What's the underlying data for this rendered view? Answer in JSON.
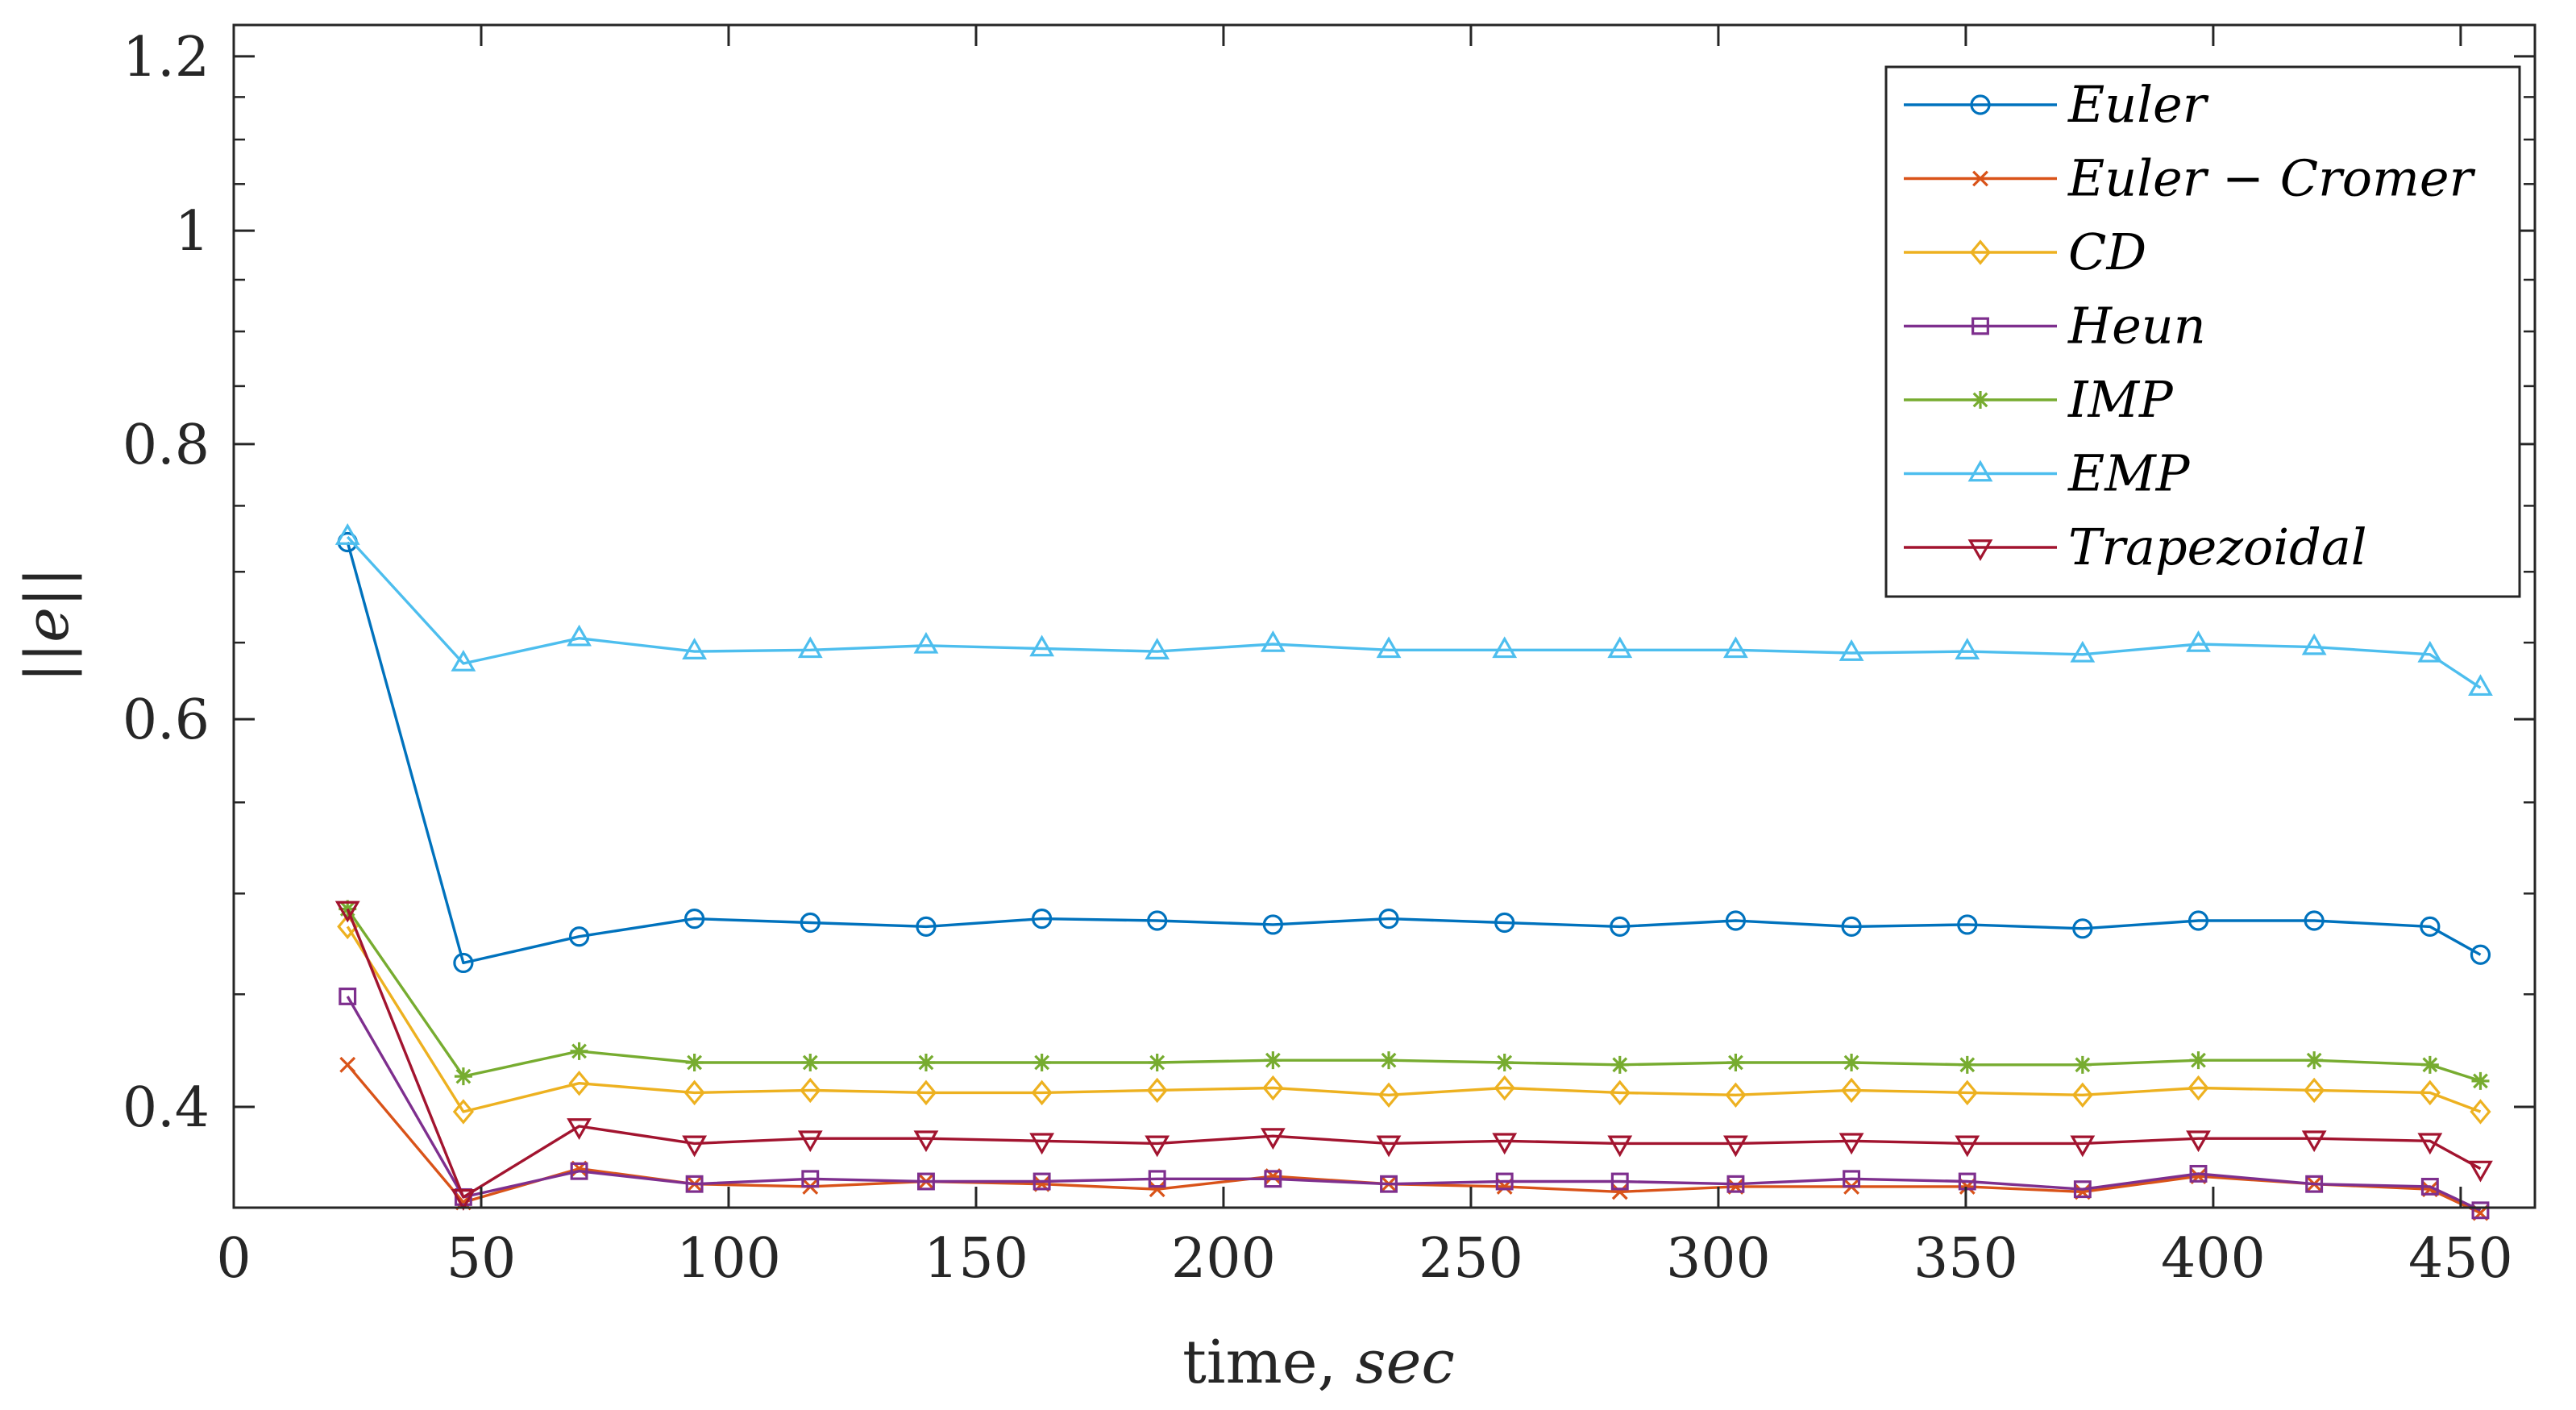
{
  "chart_data": {
    "type": "line",
    "title": "",
    "xlabel_main": "time,",
    "xlabel_unit": "sec",
    "ylabel": "||e||",
    "xlim": [
      0,
      465
    ],
    "ylim": [
      0.36,
      1.24
    ],
    "y_scale": "log",
    "xticks": [
      0,
      50,
      100,
      150,
      200,
      250,
      300,
      350,
      400,
      450
    ],
    "xtick_labels": [
      "0",
      "50",
      "100",
      "150",
      "200",
      "250",
      "300",
      "350",
      "400",
      "450"
    ],
    "yticks": [
      0.4,
      0.6,
      0.8,
      1.0,
      1.2
    ],
    "ytick_labels": [
      "0.4",
      "0.6",
      "0.8",
      "1",
      "1.2"
    ],
    "y_minor_ticks": [
      0.45,
      0.5,
      0.55,
      0.65,
      0.7,
      0.75,
      0.85,
      0.9,
      0.95,
      1.05,
      1.1,
      1.15
    ],
    "grid": false,
    "legend_position": "top-right",
    "x": [
      23,
      46.4,
      69.8,
      93.1,
      116.5,
      139.9,
      163.3,
      186.6,
      210,
      233.4,
      256.8,
      280.1,
      303.5,
      326.9,
      350.3,
      373.6,
      397,
      420.4,
      443.8,
      454
    ],
    "series": [
      {
        "name": "Euler",
        "color": "#0072BD",
        "marker": "circle",
        "values": [
          0.722,
          0.465,
          0.478,
          0.487,
          0.485,
          0.483,
          0.487,
          0.486,
          0.484,
          0.487,
          0.485,
          0.483,
          0.486,
          0.483,
          0.484,
          0.482,
          0.486,
          0.486,
          0.483,
          0.469
        ]
      },
      {
        "name": "Euler - Cromer",
        "color": "#D95319",
        "marker": "x",
        "values": [
          0.418,
          0.362,
          0.375,
          0.369,
          0.368,
          0.37,
          0.369,
          0.367,
          0.372,
          0.369,
          0.368,
          0.366,
          0.368,
          0.368,
          0.368,
          0.366,
          0.372,
          0.369,
          0.367,
          0.358
        ]
      },
      {
        "name": "CD",
        "color": "#EDB120",
        "marker": "diamond",
        "values": [
          0.483,
          0.398,
          0.41,
          0.406,
          0.407,
          0.406,
          0.406,
          0.407,
          0.408,
          0.405,
          0.408,
          0.406,
          0.405,
          0.407,
          0.406,
          0.405,
          0.408,
          0.407,
          0.406,
          0.398
        ]
      },
      {
        "name": "Heun",
        "color": "#7E2F8E",
        "marker": "square",
        "values": [
          0.449,
          0.364,
          0.374,
          0.369,
          0.371,
          0.37,
          0.37,
          0.371,
          0.371,
          0.369,
          0.37,
          0.37,
          0.369,
          0.371,
          0.37,
          0.367,
          0.373,
          0.369,
          0.368,
          0.359
        ]
      },
      {
        "name": "IMP",
        "color": "#77AC30",
        "marker": "asterisk",
        "values": [
          0.492,
          0.413,
          0.424,
          0.419,
          0.419,
          0.419,
          0.419,
          0.419,
          0.42,
          0.42,
          0.419,
          0.418,
          0.419,
          0.419,
          0.418,
          0.418,
          0.42,
          0.42,
          0.418,
          0.411
        ]
      },
      {
        "name": "EMP",
        "color": "#4DBEEE",
        "marker": "triangle-up",
        "values": [
          0.726,
          0.636,
          0.653,
          0.644,
          0.645,
          0.648,
          0.646,
          0.644,
          0.649,
          0.645,
          0.645,
          0.645,
          0.645,
          0.643,
          0.644,
          0.642,
          0.649,
          0.647,
          0.642,
          0.62
        ]
      },
      {
        "name": "Trapezoidal",
        "color": "#A2142F",
        "marker": "triangle-down",
        "values": [
          0.492,
          0.364,
          0.392,
          0.385,
          0.387,
          0.387,
          0.386,
          0.385,
          0.388,
          0.385,
          0.386,
          0.385,
          0.385,
          0.386,
          0.385,
          0.385,
          0.387,
          0.387,
          0.386,
          0.375
        ]
      }
    ],
    "legend_labels": [
      "Euler",
      "Euler − Cromer",
      "CD",
      "Heun",
      "IMP",
      "EMP",
      "Trapezoidal"
    ]
  }
}
